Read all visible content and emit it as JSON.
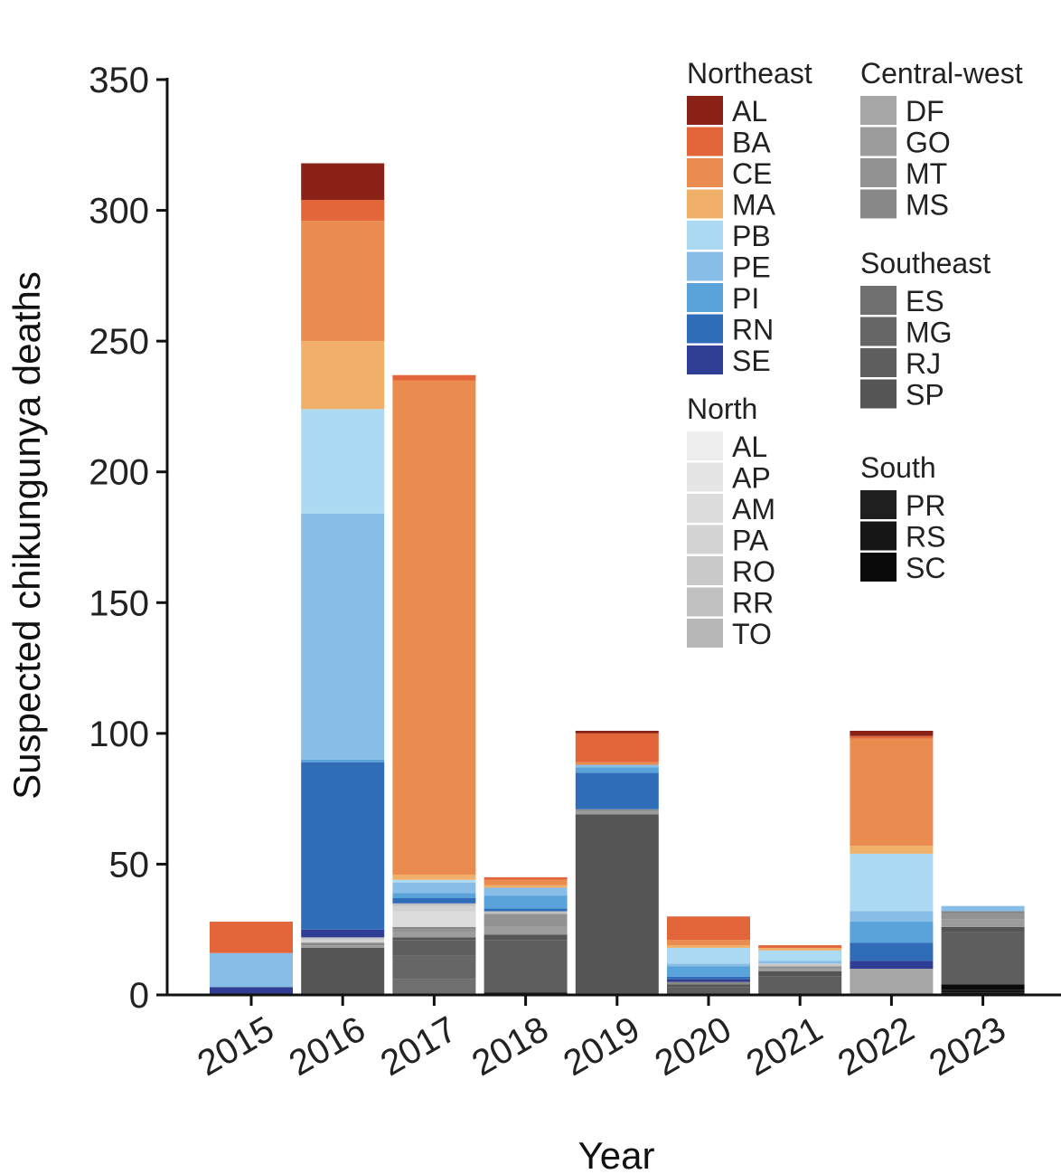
{
  "chart_data": {
    "type": "bar",
    "stacked": true,
    "xlabel": "Year",
    "ylabel": "Suspected chikungunya deaths",
    "ylim": [
      0,
      350
    ],
    "yticks": [
      0,
      50,
      100,
      150,
      200,
      250,
      300,
      350
    ],
    "categories": [
      "2015",
      "2016",
      "2017",
      "2018",
      "2019",
      "2020",
      "2021",
      "2022",
      "2023"
    ],
    "legend_groups": [
      {
        "name": "Northeast",
        "states": [
          "AL",
          "BA",
          "CE",
          "MA",
          "PB",
          "PE",
          "PI",
          "RN",
          "SE"
        ]
      },
      {
        "name": "North",
        "states": [
          "AL",
          "AP",
          "AM",
          "PA",
          "RO",
          "RR",
          "TO"
        ]
      },
      {
        "name": "Central-west",
        "states": [
          "DF",
          "GO",
          "MT",
          "MS"
        ]
      },
      {
        "name": "Southeast",
        "states": [
          "ES",
          "MG",
          "RJ",
          "SP"
        ]
      },
      {
        "name": "South",
        "states": [
          "PR",
          "RS",
          "SC"
        ]
      }
    ],
    "series": [
      {
        "name": "PR",
        "region": "South",
        "color": "#1f1f1f",
        "values": [
          0,
          0,
          0,
          1,
          0,
          0,
          0,
          0,
          1
        ]
      },
      {
        "name": "RS",
        "region": "South",
        "color": "#161616",
        "values": [
          0,
          0,
          0,
          0,
          0,
          0,
          0,
          0,
          1
        ]
      },
      {
        "name": "SC",
        "region": "South",
        "color": "#0a0a0a",
        "values": [
          0,
          0,
          0,
          0,
          0,
          0,
          0,
          0,
          2
        ]
      },
      {
        "name": "ES",
        "region": "Southeast",
        "color": "#6f6f6f",
        "values": [
          0,
          0,
          6,
          0,
          0,
          0,
          0,
          0,
          0
        ]
      },
      {
        "name": "MG",
        "region": "Southeast",
        "color": "#666666",
        "values": [
          0,
          0,
          9,
          0,
          0,
          0,
          0,
          0,
          0
        ]
      },
      {
        "name": "RJ",
        "region": "Southeast",
        "color": "#5e5e5e",
        "values": [
          0,
          0,
          6,
          20,
          0,
          3,
          7,
          0,
          20
        ]
      },
      {
        "name": "SP",
        "region": "Southeast",
        "color": "#555555",
        "values": [
          0,
          18,
          1,
          2,
          69,
          1,
          2,
          0,
          2
        ]
      },
      {
        "name": "DF",
        "region": "Central-west",
        "color": "#a6a6a6",
        "values": [
          0,
          0,
          0,
          0,
          0,
          0,
          0,
          10,
          0
        ]
      },
      {
        "name": "GO",
        "region": "Central-west",
        "color": "#9c9c9c",
        "values": [
          0,
          1,
          2,
          3,
          1,
          0,
          1,
          0,
          3
        ]
      },
      {
        "name": "MT",
        "region": "Central-west",
        "color": "#929292",
        "values": [
          0,
          0,
          1,
          5,
          1,
          0,
          1,
          0,
          2
        ]
      },
      {
        "name": "MS",
        "region": "Central-west",
        "color": "#888888",
        "values": [
          0,
          1,
          1,
          0,
          0,
          1,
          0,
          0,
          1
        ]
      },
      {
        "name": "AL",
        "region": "North",
        "color": "#eeeeee",
        "values": [
          0,
          0,
          0,
          0,
          0,
          0,
          0,
          0,
          0
        ]
      },
      {
        "name": "AP",
        "region": "North",
        "color": "#e5e5e5",
        "values": [
          0,
          0,
          0,
          0,
          0,
          0,
          0,
          0,
          0
        ]
      },
      {
        "name": "AM",
        "region": "North",
        "color": "#dcdcdc",
        "values": [
          0,
          0,
          6,
          0,
          0,
          0,
          0,
          0,
          0
        ]
      },
      {
        "name": "PA",
        "region": "North",
        "color": "#d2d2d2",
        "values": [
          0,
          1,
          2,
          0,
          0,
          0,
          0,
          0,
          0
        ]
      },
      {
        "name": "RO",
        "region": "North",
        "color": "#c9c9c9",
        "values": [
          0,
          1,
          0,
          0,
          0,
          0,
          1,
          0,
          0
        ]
      },
      {
        "name": "RR",
        "region": "North",
        "color": "#c0c0c0",
        "values": [
          0,
          0,
          1,
          1,
          0,
          0,
          0,
          0,
          0
        ]
      },
      {
        "name": "TO",
        "region": "North",
        "color": "#b7b7b7",
        "values": [
          0,
          0,
          0,
          0,
          0,
          0,
          0,
          0,
          0
        ]
      },
      {
        "name": "SE",
        "region": "Northeast",
        "color": "#2f3d94",
        "values": [
          3,
          3,
          0,
          0,
          0,
          1,
          0,
          3,
          0
        ]
      },
      {
        "name": "RN",
        "region": "Northeast",
        "color": "#2f6db8",
        "values": [
          0,
          64,
          2,
          1,
          14,
          1,
          0,
          7,
          0
        ]
      },
      {
        "name": "PI",
        "region": "Northeast",
        "color": "#5aa3da",
        "values": [
          0,
          1,
          2,
          5,
          2,
          4,
          0,
          8,
          0
        ]
      },
      {
        "name": "PE",
        "region": "Northeast",
        "color": "#87bde6",
        "values": [
          13,
          94,
          4,
          3,
          1,
          1,
          1,
          4,
          2
        ]
      },
      {
        "name": "PB",
        "region": "Northeast",
        "color": "#acdaf2",
        "values": [
          0,
          40,
          1,
          0,
          0,
          6,
          4,
          22,
          0
        ]
      },
      {
        "name": "MA",
        "region": "Northeast",
        "color": "#f0b069",
        "values": [
          0,
          26,
          2,
          1,
          0,
          1,
          1,
          3,
          0
        ]
      },
      {
        "name": "CE",
        "region": "Northeast",
        "color": "#ea8b4f",
        "values": [
          0,
          46,
          189,
          2,
          1,
          2,
          0,
          41,
          0
        ]
      },
      {
        "name": "BA",
        "region": "Northeast",
        "color": "#e3663a",
        "values": [
          12,
          8,
          2,
          1,
          11,
          9,
          1,
          1,
          0
        ]
      },
      {
        "name": "AL",
        "region": "Northeast",
        "color": "#8b2218",
        "values": [
          0,
          14,
          0,
          0,
          1,
          0,
          0,
          2,
          0
        ]
      }
    ]
  }
}
